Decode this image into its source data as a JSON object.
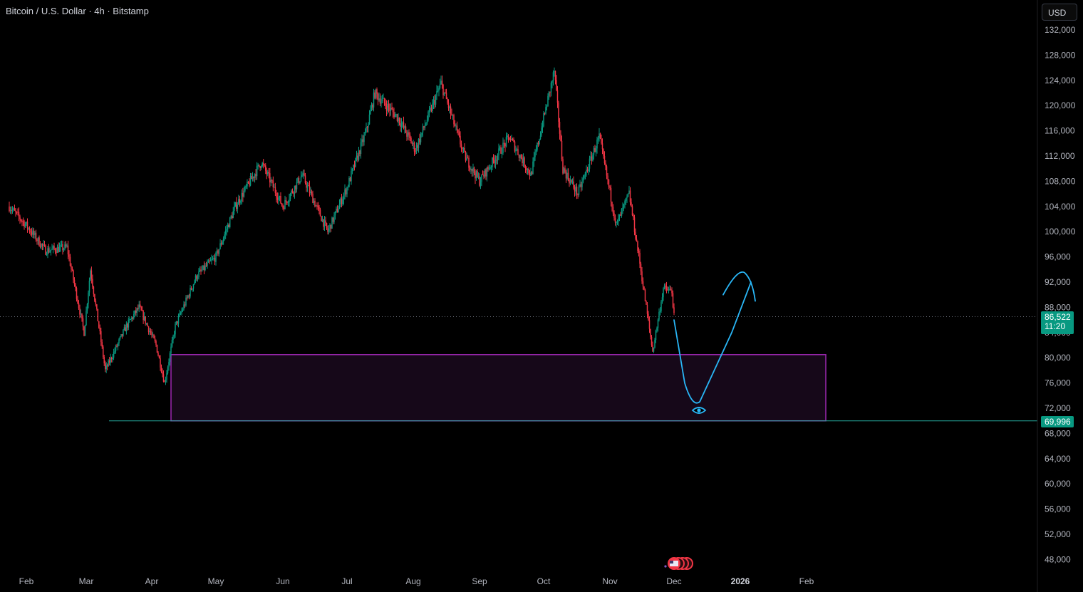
{
  "header": {
    "title": "Bitcoin / U.S. Dollar · 4h · Bitstamp",
    "currency_button": "USD"
  },
  "price_scale": {
    "ticks": [
      "132,000",
      "128,000",
      "124,000",
      "120,000",
      "116,000",
      "112,000",
      "108,000",
      "104,000",
      "100,000",
      "96,000",
      "92,000",
      "88,000",
      "84,000",
      "80,000",
      "76,000",
      "72,000",
      "68,000",
      "64,000",
      "60,000",
      "56,000",
      "52,000",
      "48,000"
    ],
    "last_price": "86,522",
    "countdown": "11:20",
    "level_label": "69,996"
  },
  "time_scale": {
    "ticks": [
      "Feb",
      "Mar",
      "Apr",
      "May",
      "Jun",
      "Jul",
      "Aug",
      "Sep",
      "Oct",
      "Nov",
      "Dec",
      "2026",
      "Feb"
    ]
  },
  "colors": {
    "background": "#000000",
    "up": "#089981",
    "down": "#f23645",
    "zone_border": "#9c27b0",
    "zone_fill": "#160819",
    "projection": "#29b6f6",
    "level_line": "#26a69a",
    "price_label_bg": "#089981"
  },
  "icons": {
    "projection_marker": "eye-icon",
    "events": "us-flag-icon"
  },
  "chart_data": {
    "type": "candlestick",
    "title": "Bitcoin / U.S. Dollar · 4h · Bitstamp",
    "currency": "USD",
    "x_axis": [
      "Feb",
      "Mar",
      "Apr",
      "May",
      "Jun",
      "Jul",
      "Aug",
      "Sep",
      "Oct",
      "Nov",
      "Dec",
      "2026",
      "Feb"
    ],
    "y_ticks": [
      132000,
      128000,
      124000,
      120000,
      116000,
      112000,
      108000,
      104000,
      100000,
      96000,
      92000,
      88000,
      84000,
      80000,
      76000,
      72000,
      68000,
      64000,
      60000,
      56000,
      52000,
      48000
    ],
    "ylim": [
      46000,
      134000
    ],
    "price_path": [
      {
        "date": "2025-01-24",
        "price": 104000
      },
      {
        "date": "2025-02-01",
        "price": 101000
      },
      {
        "date": "2025-02-10",
        "price": 97000
      },
      {
        "date": "2025-02-20",
        "price": 97500
      },
      {
        "date": "2025-02-28",
        "price": 84000
      },
      {
        "date": "2025-03-03",
        "price": 94000
      },
      {
        "date": "2025-03-10",
        "price": 78000
      },
      {
        "date": "2025-03-20",
        "price": 85000
      },
      {
        "date": "2025-03-26",
        "price": 88000
      },
      {
        "date": "2025-04-03",
        "price": 82000
      },
      {
        "date": "2025-04-07",
        "price": 76000
      },
      {
        "date": "2025-04-12",
        "price": 85000
      },
      {
        "date": "2025-04-22",
        "price": 93000
      },
      {
        "date": "2025-05-01",
        "price": 96000
      },
      {
        "date": "2025-05-10",
        "price": 104000
      },
      {
        "date": "2025-05-22",
        "price": 111000
      },
      {
        "date": "2025-06-01",
        "price": 104000
      },
      {
        "date": "2025-06-10",
        "price": 109000
      },
      {
        "date": "2025-06-22",
        "price": 100000
      },
      {
        "date": "2025-07-01",
        "price": 107000
      },
      {
        "date": "2025-07-10",
        "price": 116000
      },
      {
        "date": "2025-07-14",
        "price": 122000
      },
      {
        "date": "2025-07-25",
        "price": 118000
      },
      {
        "date": "2025-08-02",
        "price": 113000
      },
      {
        "date": "2025-08-14",
        "price": 123500
      },
      {
        "date": "2025-08-25",
        "price": 112000
      },
      {
        "date": "2025-09-01",
        "price": 108000
      },
      {
        "date": "2025-09-15",
        "price": 115000
      },
      {
        "date": "2025-09-25",
        "price": 109000
      },
      {
        "date": "2025-10-01",
        "price": 118000
      },
      {
        "date": "2025-10-06",
        "price": 125500
      },
      {
        "date": "2025-10-10",
        "price": 110000
      },
      {
        "date": "2025-10-17",
        "price": 106000
      },
      {
        "date": "2025-10-27",
        "price": 115000
      },
      {
        "date": "2025-11-04",
        "price": 101000
      },
      {
        "date": "2025-11-10",
        "price": 106000
      },
      {
        "date": "2025-11-15",
        "price": 95000
      },
      {
        "date": "2025-11-21",
        "price": 81000
      },
      {
        "date": "2025-11-26",
        "price": 91000
      },
      {
        "date": "2025-11-30",
        "price": 90500
      },
      {
        "date": "2025-12-01",
        "price": 86522
      }
    ],
    "last_price": 86522,
    "horizontal_line": 69996,
    "zone": {
      "from": "2025-04-10",
      "to": "2026-02-10",
      "price_low": 69996,
      "price_high": 80500
    },
    "projection_path": [
      {
        "date": "2025-12-01",
        "price": 86000
      },
      {
        "date": "2025-12-06",
        "price": 76000
      },
      {
        "date": "2025-12-13",
        "price": 73000
      },
      {
        "date": "2025-12-28",
        "price": 84000
      },
      {
        "date": "2026-01-06",
        "price": 92000
      }
    ],
    "projection_arrow": [
      {
        "date": "2025-12-24",
        "price": 90000
      },
      {
        "date": "2026-01-03",
        "price": 93500
      },
      {
        "date": "2026-01-08",
        "price": 89000
      }
    ],
    "legend": "none",
    "grid": false
  }
}
